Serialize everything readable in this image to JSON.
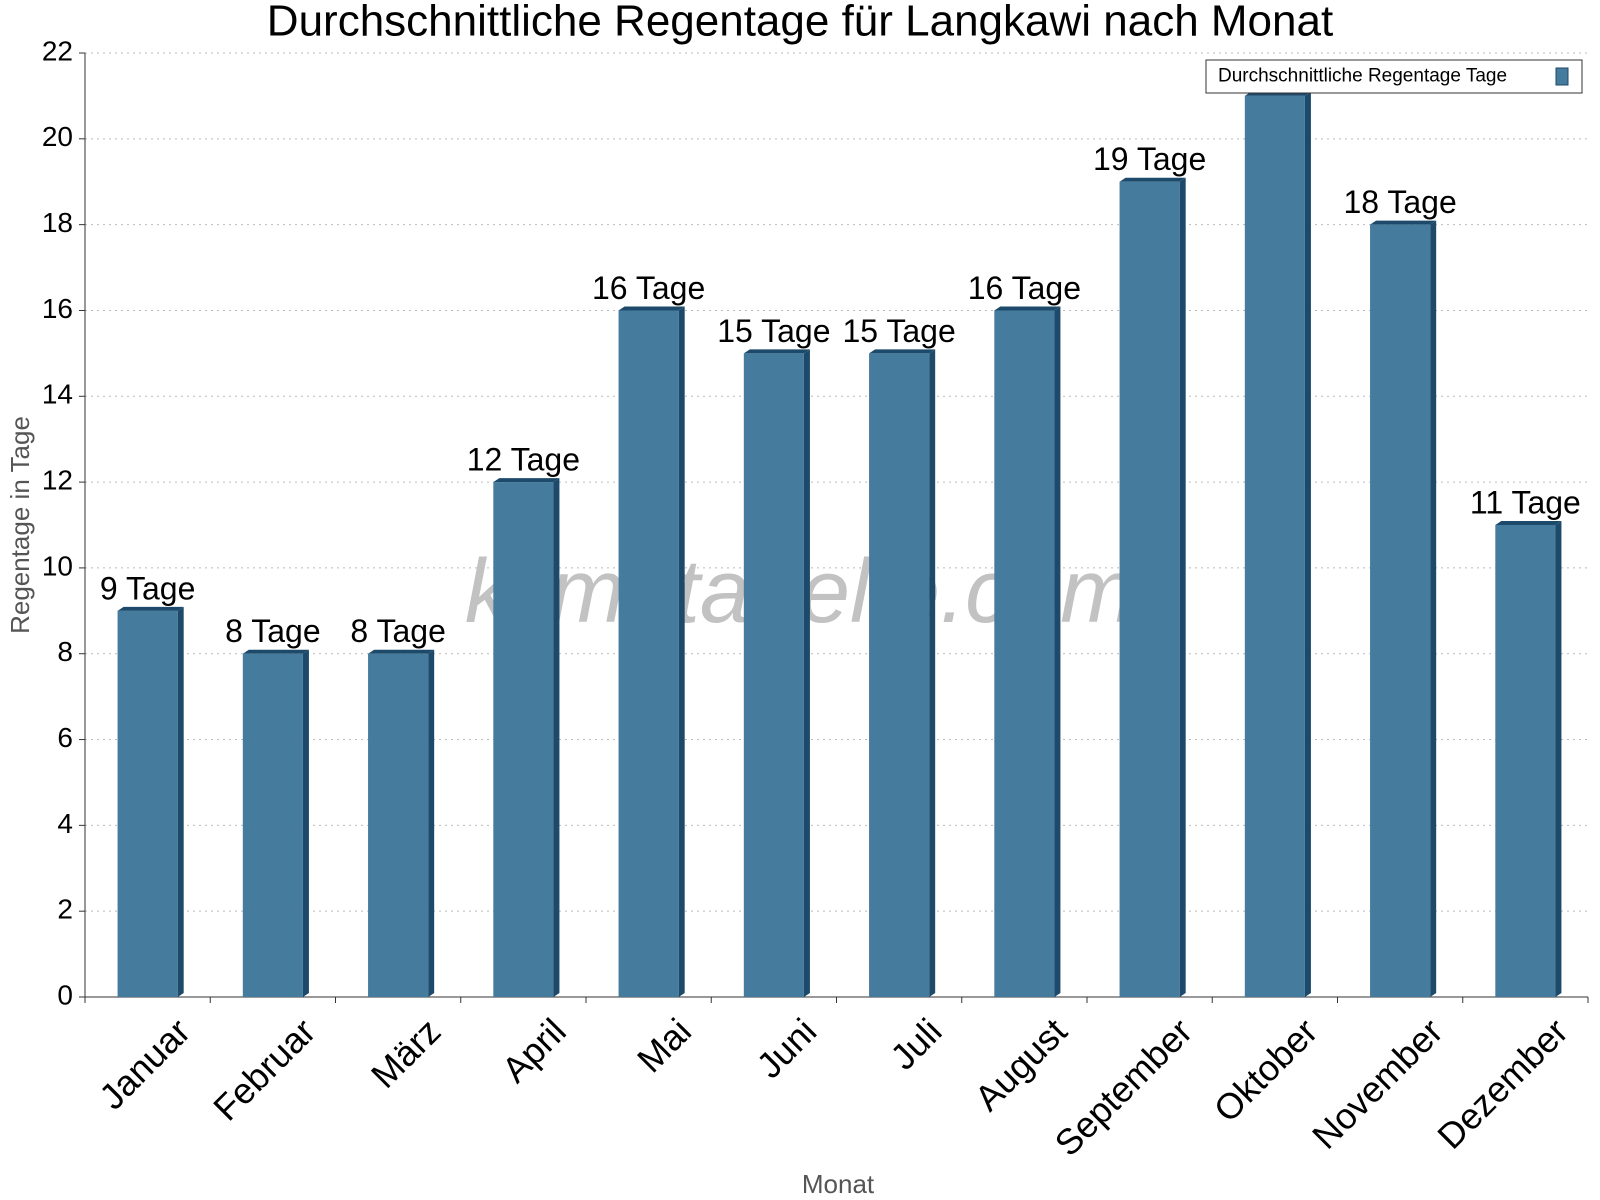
{
  "chart_data": {
    "type": "bar",
    "title": "Durchschnittliche Regentage für Langkawi nach Monat",
    "x_label": "Monat",
    "y_label": "Regentage in Tage",
    "watermark": "klimatabelle.com",
    "categories": [
      "Januar",
      "Februar",
      "März",
      "April",
      "Mai",
      "Juni",
      "Juli",
      "August",
      "September",
      "Oktober",
      "November",
      "Dezember"
    ],
    "series": [
      {
        "name": "Durchschnittliche Regentage Tage",
        "color": "#457b9d",
        "values": [
          9,
          8,
          8,
          12,
          16,
          15,
          15,
          16,
          19,
          21,
          18,
          11
        ],
        "value_labels": [
          "9 Tage",
          "8 Tage",
          "8 Tage",
          "12 Tage",
          "16 Tage",
          "15 Tage",
          "15 Tage",
          "16 Tage",
          "19 Tage",
          null,
          "18 Tage",
          "11 Tage"
        ]
      }
    ],
    "ylim": [
      0,
      22
    ],
    "yticks": [
      0,
      2,
      4,
      6,
      8,
      10,
      12,
      14,
      16,
      18,
      20,
      22
    ],
    "grid": true,
    "legend": "top-right"
  }
}
